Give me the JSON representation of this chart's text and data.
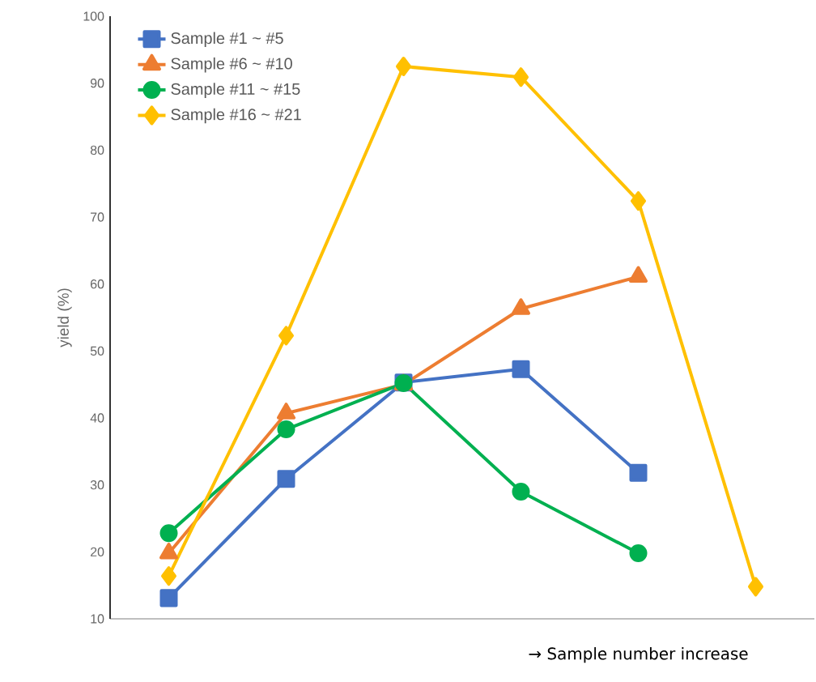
{
  "chart_data": {
    "type": "line",
    "xlabel": "→ Sample number increase",
    "ylabel": "yield (%)",
    "categories": [
      null,
      null,
      null,
      null,
      null,
      null
    ],
    "ylim": [
      10,
      100
    ],
    "yticks": [
      10,
      20,
      30,
      40,
      50,
      60,
      70,
      80,
      90,
      100
    ],
    "tick_labels": "y",
    "grid": false,
    "legend": "top left",
    "line_style": "solid",
    "series": [
      {
        "name": "Sample #1 ~ #5",
        "color": "#4472c4",
        "marker": "square",
        "values": [
          13.1,
          30.9,
          45.3,
          47.3,
          31.8,
          null
        ]
      },
      {
        "name": "Sample #6 ~ #10",
        "color": "#ed7d31",
        "marker": "triangle",
        "values": [
          19.8,
          40.7,
          45.0,
          56.3,
          61.1,
          null
        ]
      },
      {
        "name": "Sample #11 ~ #15",
        "color": "#00b050",
        "marker": "circle",
        "values": [
          22.8,
          38.3,
          45.2,
          29.0,
          19.8,
          null
        ]
      },
      {
        "name": "Sample #16 ~ #21",
        "color": "#ffc000",
        "marker": "diamond",
        "values": [
          16.4,
          52.3,
          92.5,
          90.9,
          72.4,
          14.8
        ]
      }
    ]
  }
}
